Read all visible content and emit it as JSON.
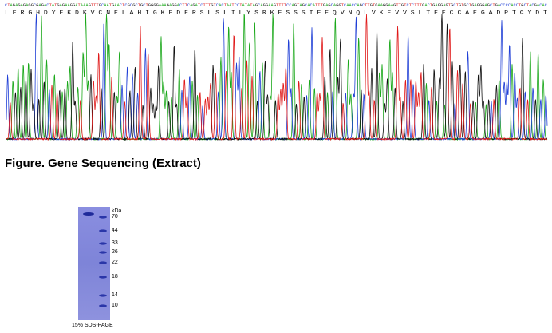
{
  "sequencing": {
    "dna": "CTAGAGAGAGGCGAGACTATGAGAAGGATAAAGTTTGCAATGAACTCGCGCTGCTGGGGAAAGAGGACTTCAGATCTTTGTCACTAATCCTATATAGCAGGAAGTTTTCCAGTAGCACATTTGAGCAGGTCAACCAGCTTGTGAAGGAAGTTGTCTCTTTGACTGAGGAGTGCTGTGCTGAGGGAGCTGACCCCACCTGCTACGACAC",
    "protein": "L E R G H D Y E K D K V C N E L A H I G K E D F R S L S L I L Y S R K F S S S T F E Q V N Q L V K E V V S L T E E C C A E G A D P T C Y D T",
    "caption": "Figure. Gene Sequencing (Extract)"
  },
  "gel": {
    "unit": "kDa",
    "markers": [
      "70",
      "44",
      "33",
      "26",
      "22",
      "18",
      "14",
      "10"
    ],
    "caption": "15% SDS-PAGE"
  }
}
